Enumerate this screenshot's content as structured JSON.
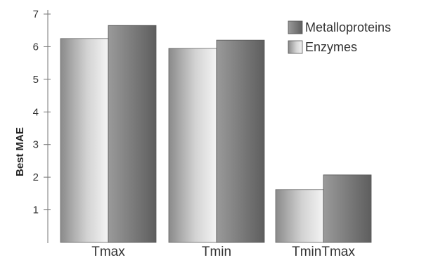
{
  "chart_data": {
    "type": "bar",
    "title": "",
    "xlabel": "",
    "ylabel": "Best MAE",
    "categories": [
      "Tmax",
      "Tmin",
      "TminTmax"
    ],
    "series": [
      {
        "name": "Enzymes",
        "values": [
          6.25,
          5.95,
          1.62
        ],
        "color": "#b8b8b8"
      },
      {
        "name": "Metalloproteins",
        "values": [
          6.65,
          6.2,
          2.07
        ],
        "color": "#7a7a7a"
      }
    ],
    "legend_order": [
      "Metalloproteins",
      "Enzymes"
    ],
    "ylim": [
      0,
      7
    ],
    "yticks": [
      1,
      2,
      3,
      4,
      5,
      6,
      7
    ],
    "legend_position": "top-right",
    "grid": false
  }
}
